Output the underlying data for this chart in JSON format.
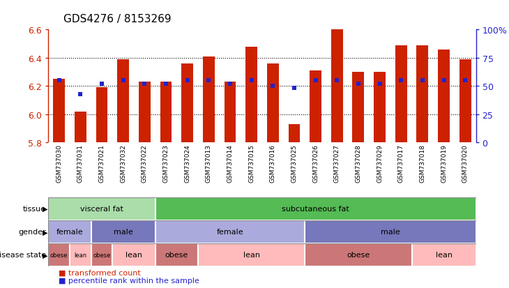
{
  "title": "GDS4276 / 8153269",
  "samples": [
    "GSM737030",
    "GSM737031",
    "GSM737021",
    "GSM737032",
    "GSM737022",
    "GSM737023",
    "GSM737024",
    "GSM737013",
    "GSM737014",
    "GSM737015",
    "GSM737016",
    "GSM737025",
    "GSM737026",
    "GSM737027",
    "GSM737028",
    "GSM737029",
    "GSM737017",
    "GSM737018",
    "GSM737019",
    "GSM737020"
  ],
  "bar_values": [
    6.25,
    6.02,
    6.19,
    6.39,
    6.23,
    6.23,
    6.36,
    6.41,
    6.23,
    6.48,
    6.36,
    5.93,
    6.31,
    6.61,
    6.3,
    6.3,
    6.49,
    6.49,
    6.46,
    6.39
  ],
  "percentile_values": [
    55,
    43,
    52,
    55,
    52,
    52,
    55,
    55,
    52,
    55,
    50,
    48,
    55,
    55,
    52,
    52,
    55,
    55,
    55,
    55
  ],
  "ymin": 5.8,
  "ymax": 6.6,
  "yticks": [
    5.8,
    6.0,
    6.2,
    6.4,
    6.6
  ],
  "grid_lines": [
    6.0,
    6.2,
    6.4
  ],
  "y2ticks": [
    0,
    25,
    50,
    75,
    100
  ],
  "bar_color": "#cc2200",
  "percentile_color": "#2222cc",
  "xtick_bg": "#cccccc",
  "xtick_border": "#888888",
  "tissue_groups": [
    {
      "label": "visceral fat",
      "start": 0,
      "end": 5,
      "color": "#aaddaa"
    },
    {
      "label": "subcutaneous fat",
      "start": 5,
      "end": 20,
      "color": "#55bb55"
    }
  ],
  "gender_groups": [
    {
      "label": "female",
      "start": 0,
      "end": 2,
      "color": "#aaaadd"
    },
    {
      "label": "male",
      "start": 2,
      "end": 5,
      "color": "#7777bb"
    },
    {
      "label": "female",
      "start": 5,
      "end": 12,
      "color": "#aaaadd"
    },
    {
      "label": "male",
      "start": 12,
      "end": 20,
      "color": "#7777bb"
    }
  ],
  "disease_groups": [
    {
      "label": "obese",
      "start": 0,
      "end": 1,
      "color": "#cc7777"
    },
    {
      "label": "lean",
      "start": 1,
      "end": 2,
      "color": "#ffbbbb"
    },
    {
      "label": "obese",
      "start": 2,
      "end": 3,
      "color": "#cc7777"
    },
    {
      "label": "lean",
      "start": 3,
      "end": 5,
      "color": "#ffbbbb"
    },
    {
      "label": "obese",
      "start": 5,
      "end": 7,
      "color": "#cc7777"
    },
    {
      "label": "lean",
      "start": 7,
      "end": 12,
      "color": "#ffbbbb"
    },
    {
      "label": "obese",
      "start": 12,
      "end": 17,
      "color": "#cc7777"
    },
    {
      "label": "lean",
      "start": 17,
      "end": 20,
      "color": "#ffbbbb"
    }
  ],
  "row_labels": [
    "tissue",
    "gender",
    "disease state"
  ],
  "legend_items": [
    {
      "label": "transformed count",
      "color": "#cc2200"
    },
    {
      "label": "percentile rank within the sample",
      "color": "#2222cc"
    }
  ]
}
